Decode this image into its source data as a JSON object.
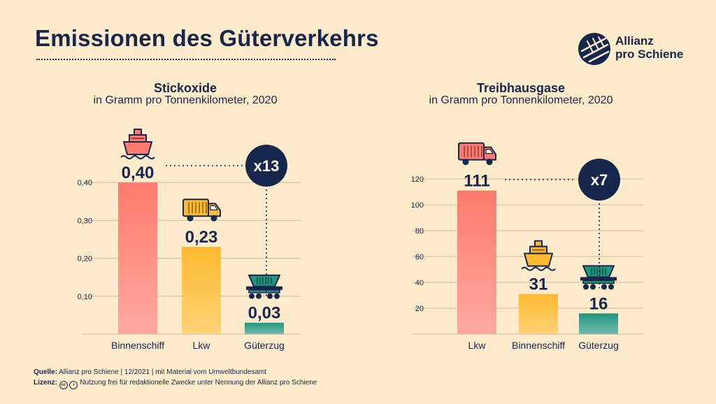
{
  "page": {
    "title": "Emissionen des Güterverkehrs",
    "logo_line1": "Allianz",
    "logo_line2": "pro Schiene",
    "footer": {
      "source_label": "Quelle:",
      "source_text": "Allianz pro Schiene | 12/2021 | mit Material vom Umweltbundesamt",
      "license_label": "Lizenz:",
      "license_text": "Nutzung frei für redaktionelle Zwecke unter Nennung der Allianz pro Schiene"
    },
    "colors": {
      "background": "#fdebcb",
      "navy": "#16264c",
      "red": "#ff7a6e",
      "yellow": "#ffb92e",
      "teal": "#23957f"
    }
  },
  "chart_data": [
    {
      "type": "bar",
      "title": "Stickoxide",
      "subtitle": "in Gramm pro Tonnenkilometer, 2020",
      "categories": [
        "Binnenschiff",
        "Lkw",
        "Güterzug"
      ],
      "values": [
        0.4,
        0.23,
        0.03
      ],
      "value_labels": [
        "0,40",
        "0,23",
        "0,03"
      ],
      "icons": [
        "ship-icon",
        "truck-icon",
        "freight-wagon-icon"
      ],
      "colors": [
        "#ff7a6e",
        "#ffb92e",
        "#23957f"
      ],
      "ticks": [
        0.1,
        0.2,
        0.3,
        0.4
      ],
      "tick_labels": [
        "0,10",
        "0,20",
        "0,30",
        "0,40"
      ],
      "ylim": [
        0,
        0.4
      ],
      "grid": true,
      "comparison": {
        "label": "x13",
        "from": "Binnenschiff",
        "to": "Güterzug"
      }
    },
    {
      "type": "bar",
      "title": "Treibhausgase",
      "subtitle": "in Gramm pro Tonnenkilometer, 2020",
      "categories": [
        "Lkw",
        "Binnenschiff",
        "Güterzug"
      ],
      "values": [
        111,
        31,
        16
      ],
      "value_labels": [
        "111",
        "31",
        "16"
      ],
      "icons": [
        "truck-icon",
        "ship-icon",
        "freight-wagon-icon"
      ],
      "colors": [
        "#ff7a6e",
        "#ffb92e",
        "#23957f"
      ],
      "ticks": [
        20,
        40,
        60,
        80,
        100,
        120
      ],
      "tick_labels": [
        "20",
        "40",
        "60",
        "80",
        "100",
        "120"
      ],
      "ylim": [
        0,
        120
      ],
      "grid": true,
      "comparison": {
        "label": "x7",
        "from": "Lkw",
        "to": "Güterzug"
      }
    }
  ]
}
